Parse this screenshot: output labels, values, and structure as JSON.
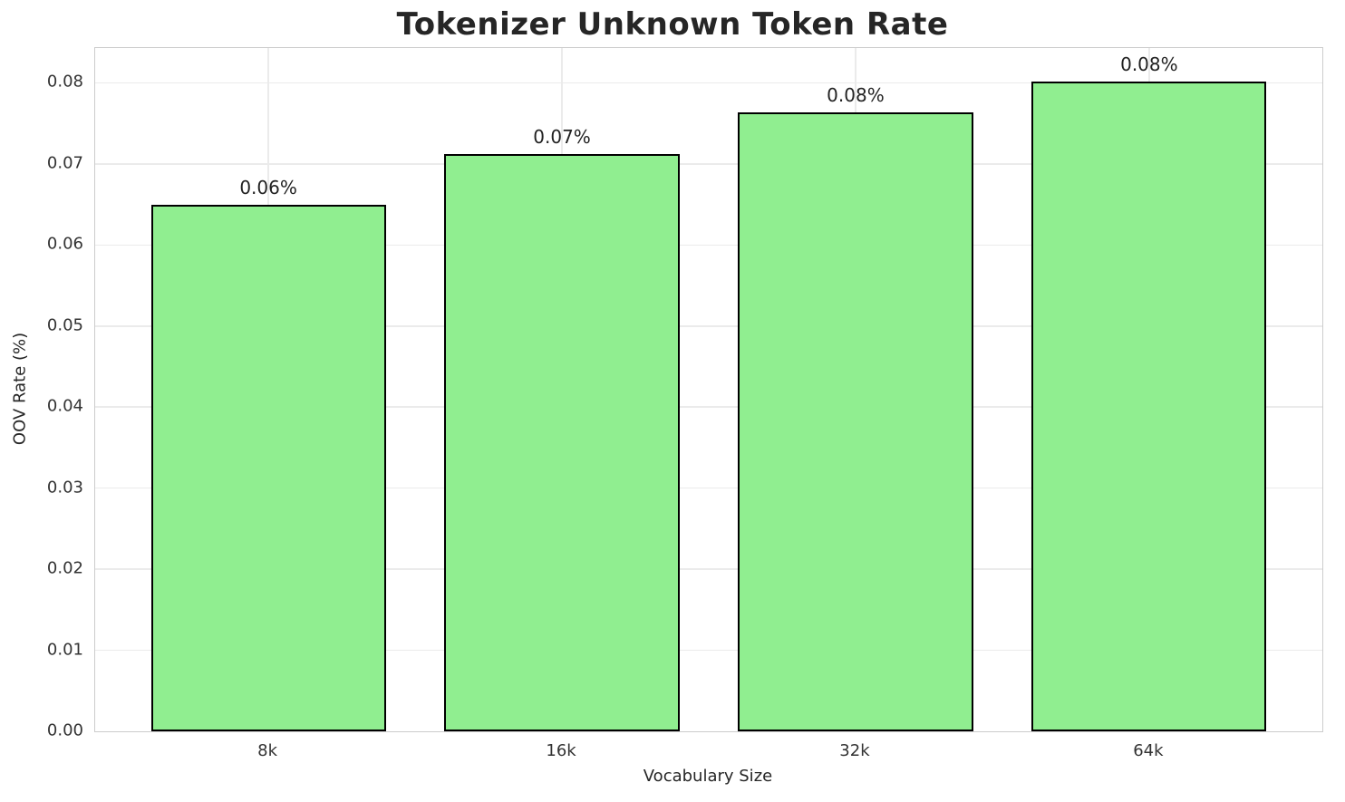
{
  "chart_data": {
    "type": "bar",
    "title": "Tokenizer Unknown Token Rate",
    "xlabel": "Vocabulary Size",
    "ylabel": "OOV Rate (%)",
    "categories": [
      "8k",
      "16k",
      "32k",
      "64k"
    ],
    "values": [
      0.065,
      0.0712,
      0.0764,
      0.0802
    ],
    "bar_labels": [
      "0.06%",
      "0.07%",
      "0.08%",
      "0.08%"
    ],
    "ylim": [
      0,
      0.0843
    ],
    "yticks": [
      0,
      0.01,
      0.02,
      0.03,
      0.04,
      0.05,
      0.06,
      0.07,
      0.08
    ],
    "ytick_labels": [
      "0.00",
      "0.01",
      "0.02",
      "0.03",
      "0.04",
      "0.05",
      "0.06",
      "0.07",
      "0.08"
    ],
    "grid": true,
    "legend_position": "none",
    "colors": {
      "bar_fill": "#90EE90",
      "bar_edge": "#000000",
      "gridline": "#ebebeb",
      "spine": "#cccccc",
      "title_text": "#262626",
      "tick_text": "#333333"
    }
  }
}
